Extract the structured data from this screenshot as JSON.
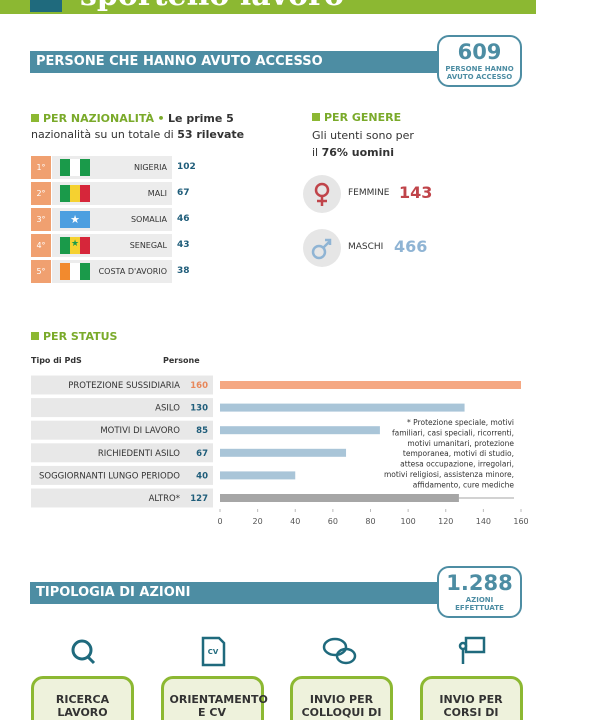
{
  "header": {
    "title": "sportello lavoro"
  },
  "access": {
    "heading": "PERSONE CHE HANNO AVUTO ACCESSO",
    "total": 609,
    "total_label": "PERSONE HANNO AVUTO ACCESSO"
  },
  "nationality": {
    "heading": "PER NAZIONALITÀ",
    "intro": [
      "•",
      "Le prime 5",
      "nazionalità su un totale di",
      "53 rilevate"
    ],
    "ranks": [
      {
        "rank": "1°",
        "name": "NIGERIA",
        "value": 102
      },
      {
        "rank": "2°",
        "name": "MALI",
        "value": 67
      },
      {
        "rank": "3°",
        "name": "SOMALIA",
        "value": 46
      },
      {
        "rank": "4°",
        "name": "SENEGAL",
        "value": 43
      },
      {
        "rank": "5°",
        "name": "COSTA D'AVORIO",
        "value": 38
      }
    ]
  },
  "gender": {
    "heading": "PER GENERE",
    "intro": [
      "Gli utenti sono per",
      "il",
      "76% uomini"
    ],
    "items": [
      {
        "label": "FEMMINE",
        "value": 143
      },
      {
        "label": "MASCHI",
        "value": 466
      }
    ]
  },
  "chart_data": {
    "type": "bar",
    "orientation": "horizontal",
    "title": "PER STATUS",
    "category_label": "Tipo di PdS",
    "value_label": "Persone",
    "categories": [
      "PROTEZIONE SUSSIDIARIA",
      "ASILO",
      "MOTIVI DI LAVORO",
      "RICHIEDENTI ASILO",
      "SOGGIORNANTI LUNGO PERIODO",
      "ALTRO*"
    ],
    "values": [
      160,
      130,
      85,
      67,
      40,
      127
    ],
    "colors": [
      "#f5a883",
      "#a9c5d8",
      "#a9c5d8",
      "#a9c5d8",
      "#a9c5d8",
      "#a6a6a6"
    ],
    "value_label_colors": [
      "#e8875a",
      "#1f5d7a",
      "#1f5d7a",
      "#1f5d7a",
      "#1f5d7a",
      "#1f5d7a"
    ],
    "xlim": [
      0,
      160
    ],
    "xticks": [
      0,
      20,
      40,
      60,
      80,
      100,
      120,
      140,
      160
    ],
    "grid": false,
    "note": [
      "* Protezione speciale, motivi",
      "familiari, casi speciali, ricorrenti,",
      "motivi umanitari, protezione",
      "temporanea, motivi di studio,",
      "attesa occupazione, irregolari,",
      "motivi religiosi, assistenza minore,",
      "affidamento, cure mediche"
    ]
  },
  "actions": {
    "heading": "TIPOLOGIA DI AZIONI",
    "total": "1.288",
    "total_label": "AZIONI EFFETTUATE",
    "items": [
      "RICERCA LAVORO",
      "ORIENTAMENTO E CV",
      "INVIO PER COLLOQUI DI LAVORO",
      "INVIO PER CORSI DI FORMAZIONE"
    ]
  }
}
